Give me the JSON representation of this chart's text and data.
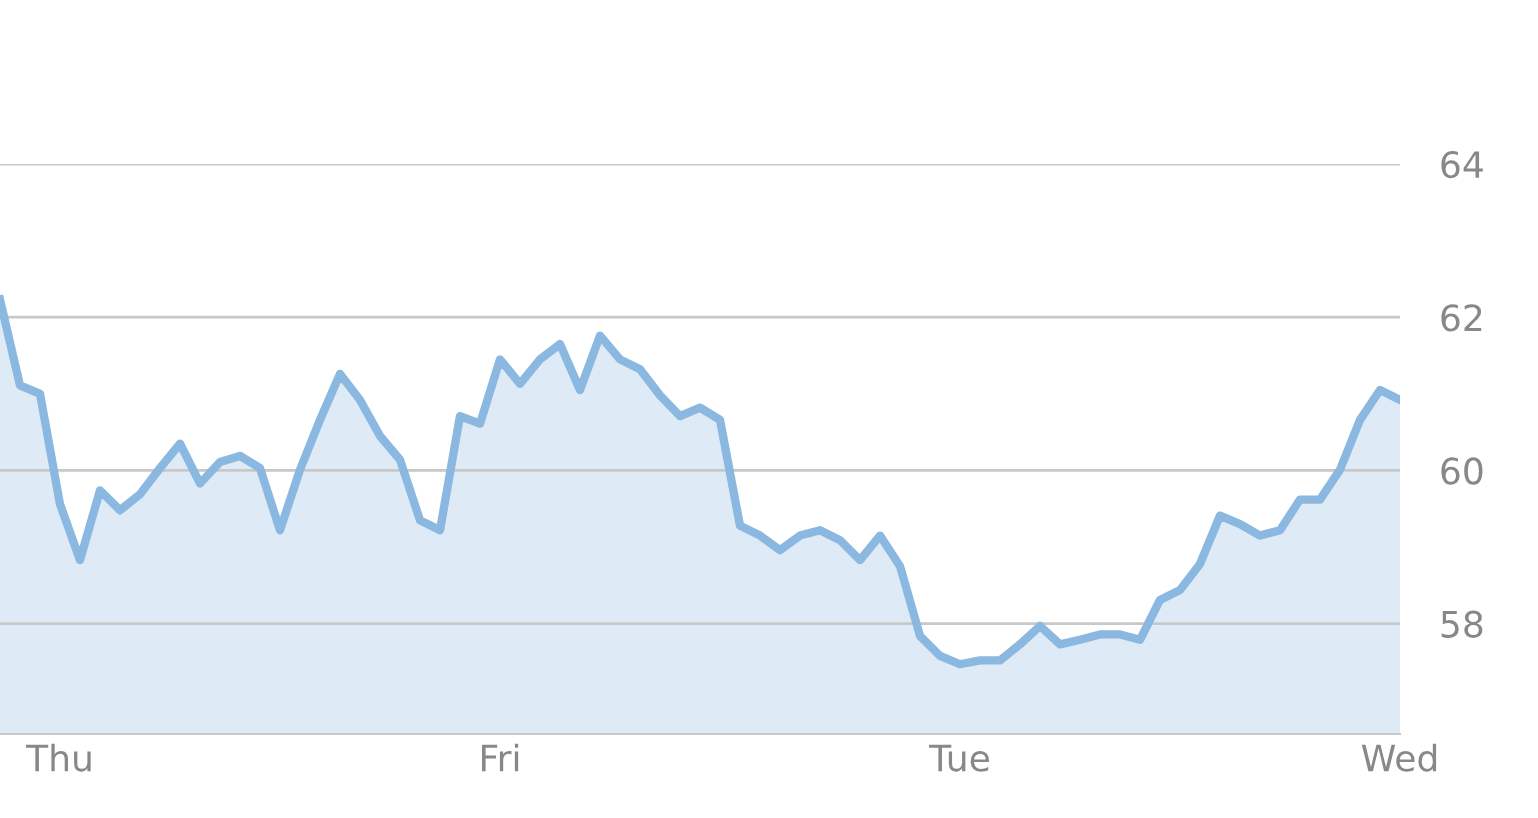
{
  "chart_data": {
    "type": "area",
    "categories": [
      null,
      null,
      null,
      "Thu",
      null,
      null,
      null,
      null,
      null,
      null,
      null,
      null,
      null,
      null,
      null,
      null,
      null,
      null,
      null,
      null,
      null,
      null,
      null,
      null,
      null,
      "Fri",
      null,
      null,
      null,
      null,
      null,
      null,
      null,
      null,
      null,
      null,
      null,
      null,
      null,
      null,
      null,
      null,
      null,
      null,
      null,
      null,
      null,
      null,
      "Tue",
      null,
      null,
      null,
      null,
      null,
      null,
      null,
      null,
      null,
      null,
      null,
      null,
      null,
      null,
      null,
      null,
      null,
      null,
      null,
      null,
      null,
      "Wed"
    ],
    "series": [
      {
        "color": "#8ab8e0",
        "values": [
          62.23,
          61.11,
          61.0,
          59.56,
          58.83,
          59.74,
          59.48,
          59.69,
          60.03,
          60.35,
          59.83,
          60.11,
          60.19,
          60.03,
          59.22,
          60.01,
          60.66,
          61.26,
          60.92,
          60.45,
          60.14,
          59.35,
          59.22,
          60.71,
          60.61,
          61.45,
          61.13,
          61.45,
          61.65,
          61.05,
          61.76,
          61.45,
          61.32,
          60.98,
          60.71,
          60.82,
          60.66,
          59.28,
          59.15,
          58.96,
          59.15,
          59.22,
          59.09,
          58.83,
          59.15,
          58.75,
          57.84,
          57.58,
          57.47,
          57.52,
          57.52,
          57.73,
          57.97,
          57.73,
          57.79,
          57.86,
          57.86,
          57.79,
          58.31,
          58.44,
          58.78,
          59.41,
          59.3,
          59.15,
          59.22,
          59.62,
          59.62,
          60.01,
          60.66,
          61.05,
          60.92
        ]
      }
    ],
    "ylim": [
      56.56,
      64
    ],
    "yticks": [
      58,
      60,
      62,
      64
    ],
    "grid": "y"
  }
}
